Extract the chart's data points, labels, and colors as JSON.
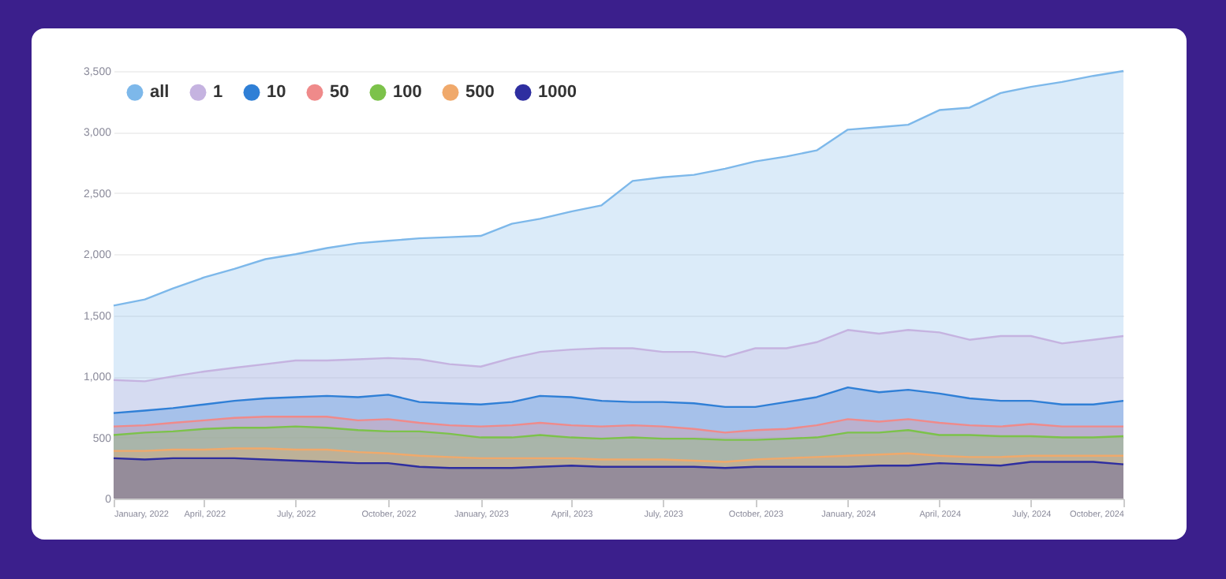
{
  "chart_data": {
    "type": "area",
    "x": [
      "2022-01",
      "2022-02",
      "2022-03",
      "2022-04",
      "2022-05",
      "2022-06",
      "2022-07",
      "2022-08",
      "2022-09",
      "2022-10",
      "2022-11",
      "2022-12",
      "2023-01",
      "2023-02",
      "2023-03",
      "2023-04",
      "2023-05",
      "2023-06",
      "2023-07",
      "2023-08",
      "2023-09",
      "2023-10",
      "2023-11",
      "2023-12",
      "2024-01",
      "2024-02",
      "2024-03",
      "2024-04",
      "2024-05",
      "2024-06",
      "2024-07",
      "2024-08",
      "2024-09",
      "2024-10"
    ],
    "series": [
      {
        "name": "all",
        "color": "#7db8ea",
        "values": [
          1580,
          1630,
          1720,
          1810,
          1880,
          1960,
          2000,
          2050,
          2090,
          2110,
          2130,
          2140,
          2150,
          2250,
          2290,
          2350,
          2400,
          2600,
          2630,
          2650,
          2700,
          2760,
          2800,
          2850,
          3020,
          3040,
          3060,
          3180,
          3200,
          3320,
          3370,
          3410,
          3460,
          3500
        ]
      },
      {
        "name": "1",
        "color": "#c5b3e0",
        "values": [
          970,
          960,
          1000,
          1040,
          1070,
          1100,
          1130,
          1130,
          1140,
          1150,
          1140,
          1100,
          1080,
          1150,
          1200,
          1220,
          1230,
          1230,
          1200,
          1200,
          1160,
          1230,
          1230,
          1280,
          1380,
          1350,
          1380,
          1360,
          1300,
          1330,
          1330,
          1270,
          1300,
          1330
        ]
      },
      {
        "name": "10",
        "color": "#2f7fd6",
        "values": [
          700,
          720,
          740,
          770,
          800,
          820,
          830,
          840,
          830,
          850,
          790,
          780,
          770,
          790,
          840,
          830,
          800,
          790,
          790,
          780,
          750,
          750,
          790,
          830,
          910,
          870,
          890,
          860,
          820,
          800,
          800,
          770,
          770,
          800
        ]
      },
      {
        "name": "50",
        "color": "#ef8a8a",
        "values": [
          590,
          600,
          620,
          640,
          660,
          670,
          670,
          670,
          640,
          650,
          620,
          600,
          590,
          600,
          620,
          600,
          590,
          600,
          590,
          570,
          540,
          560,
          570,
          600,
          650,
          630,
          650,
          620,
          600,
          590,
          610,
          590,
          590,
          590
        ]
      },
      {
        "name": "100",
        "color": "#7cc24a",
        "values": [
          520,
          540,
          550,
          570,
          580,
          580,
          590,
          580,
          560,
          550,
          550,
          530,
          500,
          500,
          520,
          500,
          490,
          500,
          490,
          490,
          480,
          480,
          490,
          500,
          540,
          540,
          560,
          520,
          520,
          510,
          510,
          500,
          500,
          510
        ]
      },
      {
        "name": "500",
        "color": "#f0a96b",
        "values": [
          390,
          390,
          400,
          400,
          410,
          410,
          400,
          400,
          380,
          370,
          350,
          340,
          330,
          330,
          330,
          330,
          320,
          320,
          320,
          310,
          300,
          320,
          330,
          340,
          350,
          360,
          370,
          350,
          340,
          340,
          350,
          350,
          350,
          350
        ]
      },
      {
        "name": "1000",
        "color": "#2e2ea0",
        "values": [
          330,
          320,
          330,
          330,
          330,
          320,
          310,
          300,
          290,
          290,
          260,
          250,
          250,
          250,
          260,
          270,
          260,
          260,
          260,
          260,
          250,
          260,
          260,
          260,
          260,
          270,
          270,
          290,
          280,
          270,
          300,
          300,
          300,
          280
        ]
      }
    ],
    "xlim": [
      "2022-01",
      "2024-10"
    ],
    "xticks": [
      {
        "value": "2022-01",
        "label": "January, 2022"
      },
      {
        "value": "2022-04",
        "label": "April, 2022"
      },
      {
        "value": "2022-07",
        "label": "July, 2022"
      },
      {
        "value": "2022-10",
        "label": "October, 2022"
      },
      {
        "value": "2023-01",
        "label": "January, 2023"
      },
      {
        "value": "2023-04",
        "label": "April, 2023"
      },
      {
        "value": "2023-07",
        "label": "July, 2023"
      },
      {
        "value": "2023-10",
        "label": "October, 2023"
      },
      {
        "value": "2024-01",
        "label": "January, 2024"
      },
      {
        "value": "2024-04",
        "label": "April, 2024"
      },
      {
        "value": "2024-07",
        "label": "July, 2024"
      },
      {
        "value": "2024-10",
        "label": "October, 2024"
      }
    ],
    "ylim": [
      0,
      3500
    ],
    "yticks": [
      0,
      500,
      {
        "value": 1000,
        "label": "1,000"
      },
      {
        "value": 1500,
        "label": "1,500"
      },
      {
        "value": 2000,
        "label": "2,000"
      },
      {
        "value": 2500,
        "label": "2,500"
      },
      {
        "value": 3000,
        "label": "3,000"
      },
      {
        "value": 3500,
        "label": "3,500"
      }
    ],
    "grid": "y",
    "legend": "top left"
  }
}
